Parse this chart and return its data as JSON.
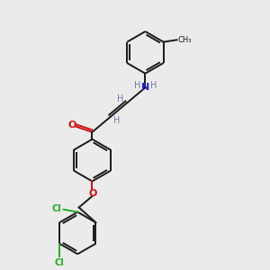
{
  "bg_color": "#ebebeb",
  "bond_color": "#1a1a1a",
  "N_color": "#2222cc",
  "O_color": "#cc1111",
  "Cl_color": "#22aa22",
  "H_color": "#7777aa",
  "figsize": [
    3.0,
    3.0
  ],
  "dpi": 100,
  "xlim": [
    0,
    10
  ],
  "ylim": [
    0,
    10
  ]
}
